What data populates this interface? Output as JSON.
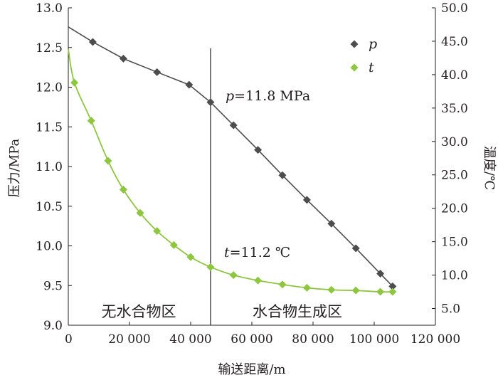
{
  "chart_data": {
    "type": "line",
    "xlabel": "输送距离/m",
    "ylabel_left": "压力/MPa",
    "ylabel_right": "温度/℃",
    "xlim": [
      0,
      120000
    ],
    "ylim_left": [
      9.0,
      13.0
    ],
    "ylim_right": [
      2.5,
      50.0
    ],
    "x_ticks": [
      0,
      20000,
      40000,
      60000,
      80000,
      100000,
      120000
    ],
    "x_tick_labels": [
      "0",
      "20 000",
      "40 000",
      "60 000",
      "80 000",
      "100 000",
      "120 000"
    ],
    "y_left_ticks": [
      9.0,
      9.5,
      10.0,
      10.5,
      11.0,
      11.5,
      12.0,
      12.5,
      13.0
    ],
    "y_left_tick_labels": [
      "9.0",
      "9.5",
      "10.0",
      "10.5",
      "11.0",
      "11.5",
      "12.0",
      "12.5",
      "13.0"
    ],
    "y_right_ticks": [
      5.0,
      10.0,
      15.0,
      20.0,
      25.0,
      30.0,
      35.0,
      40.0,
      45.0,
      50.0
    ],
    "y_right_tick_labels": [
      "5.0",
      "10.0",
      "15.0",
      "20.0",
      "25.0",
      "30.0",
      "35.0",
      "40.0",
      "45.0",
      "50.0"
    ],
    "grid": false,
    "legend_position": "top-right",
    "series": [
      {
        "name": "p",
        "axis": "left",
        "color": "#4d4d4d",
        "marker": "diamond",
        "x": [
          0,
          8000,
          18000,
          29000,
          39500,
          46500,
          54000,
          62000,
          70000,
          78000,
          86000,
          94000,
          102000,
          106000
        ],
        "y": [
          12.76,
          12.57,
          12.36,
          12.19,
          12.03,
          11.81,
          11.52,
          11.21,
          10.89,
          10.58,
          10.28,
          9.97,
          9.65,
          9.49
        ],
        "line_start": {
          "x": 0,
          "y": 12.76
        },
        "marked_from_index": 1
      },
      {
        "name": "t",
        "axis": "right",
        "color": "#8dc63f",
        "marker": "diamond",
        "x": [
          0,
          2000,
          7500,
          13000,
          18000,
          23500,
          29000,
          34500,
          40000,
          46500,
          54000,
          62000,
          70000,
          78000,
          86000,
          94000,
          102000,
          106000
        ],
        "y": [
          43.8,
          38.8,
          33.1,
          27.1,
          22.8,
          19.3,
          16.6,
          14.5,
          12.7,
          11.2,
          10.0,
          9.2,
          8.6,
          8.1,
          7.8,
          7.7,
          7.5,
          7.5
        ],
        "marked_from_index": 1
      }
    ],
    "divider": {
      "x": 46500
    },
    "annotations": [
      {
        "text": "p=11.8 MPa",
        "label_var": "p",
        "label_rest": "=11.8 MPa",
        "near_x": 46500,
        "series": "p"
      },
      {
        "text": "t=11.2 ℃",
        "label_var": "t",
        "label_rest": "=11.2 ℃",
        "near_x": 46500,
        "series": "t"
      }
    ],
    "regions": [
      {
        "label": "无水合物区"
      },
      {
        "label": "水合物生成区"
      }
    ]
  }
}
